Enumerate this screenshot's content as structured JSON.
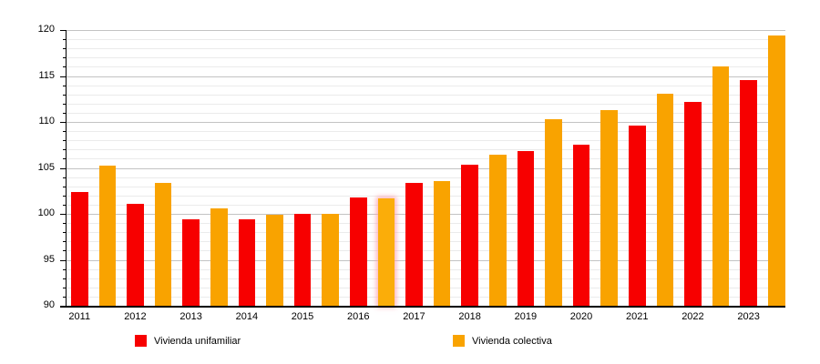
{
  "chart_data": {
    "type": "bar",
    "title": "",
    "categories": [
      "2011",
      "2012",
      "2013",
      "2014",
      "2015",
      "2016",
      "2017",
      "2018",
      "2019",
      "2020",
      "2021",
      "2022",
      "2023"
    ],
    "series": [
      {
        "name": "Vivienda unifamiliar",
        "color": "#f70000",
        "values": [
          102.4,
          101.1,
          99.4,
          99.4,
          100.0,
          101.8,
          103.4,
          105.3,
          106.8,
          107.5,
          109.6,
          112.2,
          114.6
        ]
      },
      {
        "name": "Vivienda colectiva",
        "color": "#f9a300",
        "values": [
          105.2,
          103.4,
          100.6,
          99.9,
          100.0,
          101.7,
          103.6,
          106.4,
          110.3,
          111.3,
          113.1,
          116.0,
          119.4
        ]
      }
    ],
    "xlabel": "",
    "ylabel": "",
    "ylim": [
      90,
      120
    ],
    "yticks": [
      90,
      95,
      100,
      105,
      110,
      115,
      120
    ],
    "ytick_interval": 5,
    "minor_tick_interval": 1,
    "grid": true,
    "legend_position": "bottom",
    "highlighted": {
      "series_index": 1,
      "category_index": 5
    }
  },
  "colors": {
    "background": "#ffffff",
    "axis": "#000000",
    "major_grid": "#c3c3c3",
    "minor_grid": "#ebebeb",
    "text": "#000000"
  }
}
